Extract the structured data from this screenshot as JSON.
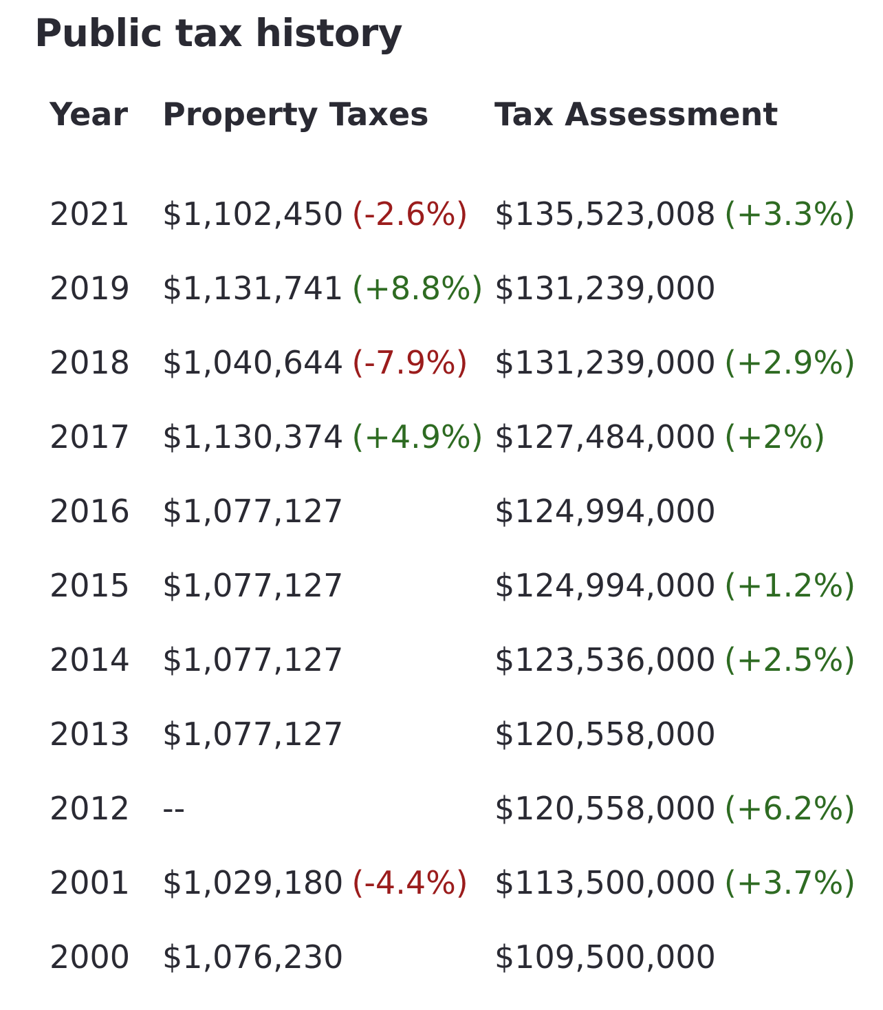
{
  "title": "Public tax history",
  "columns": {
    "year": "Year",
    "property_taxes": "Property Taxes",
    "tax_assessment": "Tax Assessment"
  },
  "colors": {
    "negative_change": "#9b1c1c",
    "positive_change": "#2e6b22",
    "text": "#2a2a33"
  },
  "rows": [
    {
      "year": "2021",
      "tax": "$1,102,450",
      "tax_change": "(-2.6%)",
      "tax_change_dir": "neg",
      "assessment": "$135,523,008",
      "assessment_change": "(+3.3%)",
      "assessment_change_dir": "pos"
    },
    {
      "year": "2019",
      "tax": "$1,131,741",
      "tax_change": "(+8.8%)",
      "tax_change_dir": "pos",
      "assessment": "$131,239,000",
      "assessment_change": "",
      "assessment_change_dir": ""
    },
    {
      "year": "2018",
      "tax": "$1,040,644",
      "tax_change": "(-7.9%)",
      "tax_change_dir": "neg",
      "assessment": "$131,239,000",
      "assessment_change": "(+2.9%)",
      "assessment_change_dir": "pos"
    },
    {
      "year": "2017",
      "tax": "$1,130,374",
      "tax_change": "(+4.9%)",
      "tax_change_dir": "pos",
      "assessment": "$127,484,000",
      "assessment_change": "(+2%)",
      "assessment_change_dir": "pos"
    },
    {
      "year": "2016",
      "tax": "$1,077,127",
      "tax_change": "",
      "tax_change_dir": "",
      "assessment": "$124,994,000",
      "assessment_change": "",
      "assessment_change_dir": ""
    },
    {
      "year": "2015",
      "tax": "$1,077,127",
      "tax_change": "",
      "tax_change_dir": "",
      "assessment": "$124,994,000",
      "assessment_change": "(+1.2%)",
      "assessment_change_dir": "pos"
    },
    {
      "year": "2014",
      "tax": "$1,077,127",
      "tax_change": "",
      "tax_change_dir": "",
      "assessment": "$123,536,000",
      "assessment_change": "(+2.5%)",
      "assessment_change_dir": "pos"
    },
    {
      "year": "2013",
      "tax": "$1,077,127",
      "tax_change": "",
      "tax_change_dir": "",
      "assessment": "$120,558,000",
      "assessment_change": "",
      "assessment_change_dir": ""
    },
    {
      "year": "2012",
      "tax": "--",
      "tax_change": "",
      "tax_change_dir": "",
      "assessment": "$120,558,000",
      "assessment_change": "(+6.2%)",
      "assessment_change_dir": "pos"
    },
    {
      "year": "2001",
      "tax": "$1,029,180",
      "tax_change": "(-4.4%)",
      "tax_change_dir": "neg",
      "assessment": "$113,500,000",
      "assessment_change": "(+3.7%)",
      "assessment_change_dir": "pos"
    },
    {
      "year": "2000",
      "tax": "$1,076,230",
      "tax_change": "",
      "tax_change_dir": "",
      "assessment": "$109,500,000",
      "assessment_change": "",
      "assessment_change_dir": ""
    }
  ]
}
